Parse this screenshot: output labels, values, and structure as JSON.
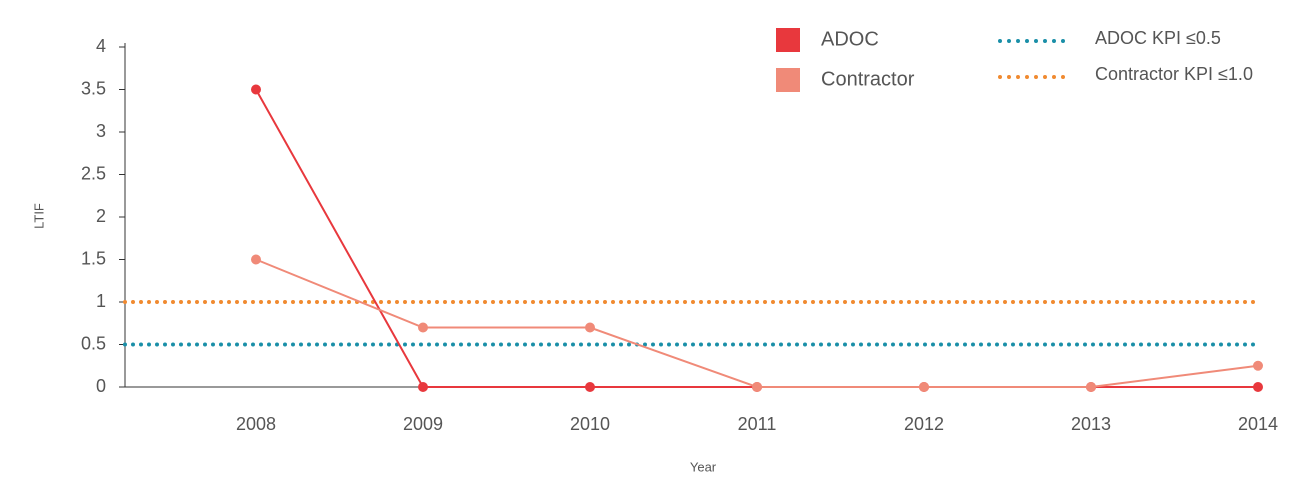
{
  "chart_data": {
    "type": "line",
    "x_label": "Year",
    "y_label": "LTIF",
    "categories": [
      "2008",
      "2009",
      "2010",
      "2011",
      "2012",
      "2013",
      "2014"
    ],
    "series": [
      {
        "name": "ADOC",
        "color": "#e8383d",
        "values": [
          3.5,
          0,
          0,
          0,
          0,
          0,
          0
        ]
      },
      {
        "name": "Contractor",
        "color": "#f08a78",
        "values": [
          1.5,
          0.7,
          0.7,
          0,
          0,
          0,
          0.25
        ]
      }
    ],
    "reference_lines": [
      {
        "name": "ADOC KPI ≤0.5",
        "value": 0.5,
        "color": "#1a8fa8"
      },
      {
        "name": "Contractor KPI ≤1.0",
        "value": 1,
        "color": "#f08a30"
      }
    ],
    "ylim": [
      0,
      4
    ],
    "yticks": [
      0,
      0.5,
      1,
      1.5,
      2,
      2.5,
      3,
      3.5,
      4
    ]
  }
}
